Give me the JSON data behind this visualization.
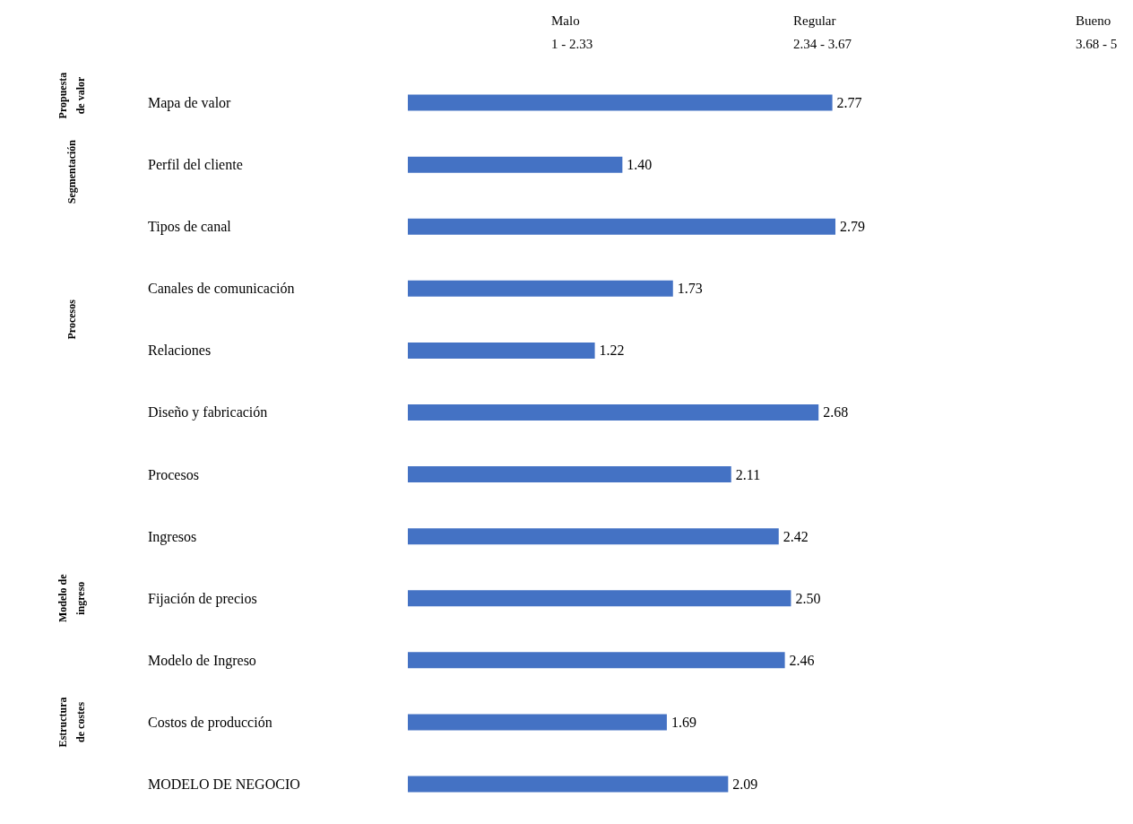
{
  "chart_data": {
    "type": "bar",
    "orientation": "horizontal",
    "categories": [
      "Mapa de valor",
      "Perfil del cliente",
      "Tipos de canal",
      "Canales de comunicación",
      "Relaciones",
      "Diseño y fabricación",
      "Procesos",
      "Ingresos",
      "Fijación de precios",
      "Modelo de Ingreso",
      "Costos de producción",
      "MODELO DE NEGOCIO"
    ],
    "values": [
      2.77,
      1.4,
      2.79,
      1.73,
      1.22,
      2.68,
      2.11,
      2.42,
      2.5,
      2.46,
      1.69,
      2.09
    ],
    "value_labels": [
      "2.77",
      "1.40",
      "2.79",
      "1.73",
      "1.22",
      "2.68",
      "2.11",
      "2.42",
      "2.50",
      "2.46",
      "1.69",
      "2.09"
    ],
    "color": "#4472c4",
    "annotations": [
      "Malo\n1 - 2.33",
      "Regular\n2.34 - 3.67",
      "Bueno\n3.68 - 5",
      "Propuesta\nde valor",
      "Segmentación",
      "Procesos",
      "Modelo de\ningreso",
      "Estructura\nde costes"
    ],
    "grid": false
  }
}
